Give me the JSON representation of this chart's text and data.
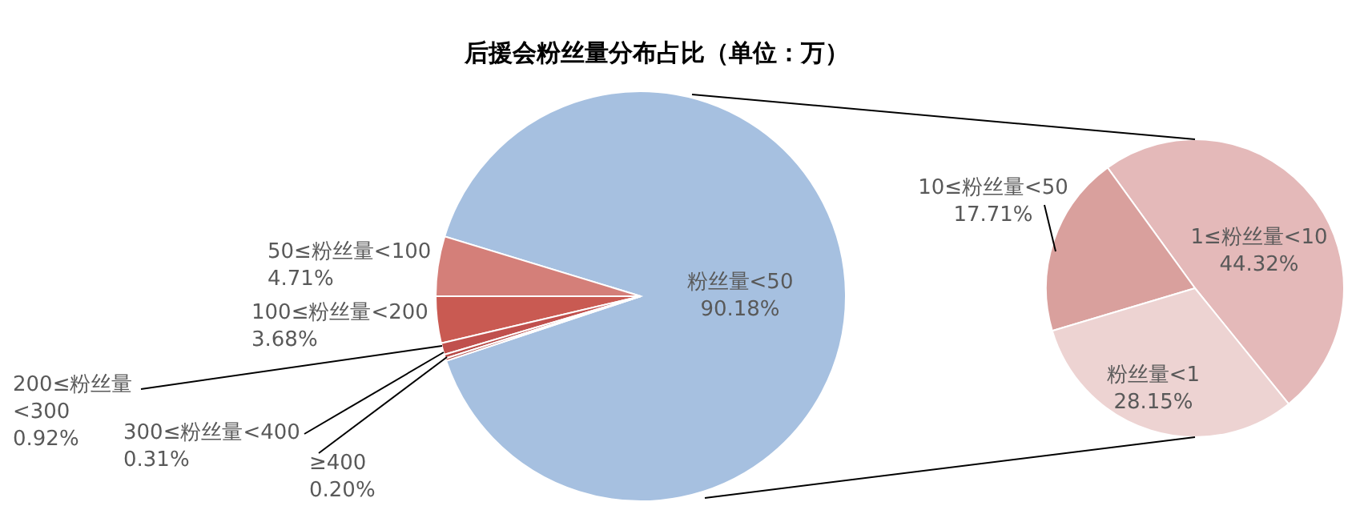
{
  "chart_data": [
    {
      "type": "pie",
      "title": "后援会粉丝量分布占比（单位：万）",
      "categories": [
        "粉丝量<50",
        "50≤粉丝量<100",
        "100≤粉丝量<200",
        "200≤粉丝量<300",
        "300≤粉丝量<400",
        "≥400"
      ],
      "values": [
        90.18,
        4.71,
        3.68,
        0.92,
        0.31,
        0.2
      ],
      "colors": [
        "#a6c0e0",
        "#d47f79",
        "#c95a52",
        "#c0504d",
        "#b84a46",
        "#b04440"
      ],
      "value_labels": [
        "90.18%",
        "4.71%",
        "3.68%",
        "0.92%",
        "0.31%",
        "0.20%"
      ]
    },
    {
      "type": "pie",
      "categories": [
        "1≤粉丝量<10",
        "10≤粉丝量<50",
        "粉丝量<1"
      ],
      "values": [
        44.32,
        17.71,
        28.15
      ],
      "colors": [
        "#e4b9b9",
        "#d9a09d",
        "#edd3d2"
      ],
      "value_labels": [
        "44.32%",
        "17.71%",
        "28.15%"
      ]
    }
  ]
}
